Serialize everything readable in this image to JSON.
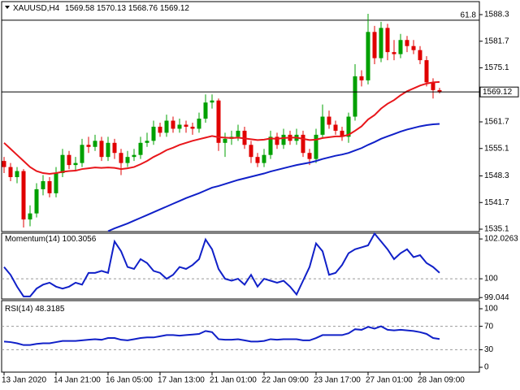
{
  "chart_data": [
    {
      "type": "candlestick",
      "title": "XAUUSD,H4",
      "categories": [
        "13 Jan 2020",
        null,
        null,
        null,
        null,
        null,
        null,
        null,
        "14 Jan 21:00",
        null,
        null,
        null,
        null,
        null,
        null,
        null,
        "16 Jan 05:00",
        null,
        null,
        null,
        null,
        null,
        null,
        null,
        "17 Jan 13:00",
        null,
        null,
        null,
        null,
        null,
        null,
        null,
        "21 Jan 01:00",
        null,
        null,
        null,
        null,
        null,
        null,
        null,
        "22 Jan 09:00",
        null,
        null,
        null,
        null,
        null,
        null,
        null,
        "23 Jan 17:00",
        null,
        null,
        null,
        null,
        null,
        null,
        null,
        "27 Jan 01:00",
        null,
        null,
        null,
        null,
        null,
        null,
        null,
        "28 Jan 09:00",
        null,
        null,
        null
      ],
      "opens": [
        1552.0,
        1550.5,
        1548.0,
        1549.5,
        1537.5,
        1539.0,
        1545.0,
        1547.0,
        1544.0,
        1549.0,
        1553.5,
        1551.0,
        1551.5,
        1556.0,
        1555.5,
        1557.0,
        1553.0,
        1556.5,
        1554.0,
        1551.5,
        1553.0,
        1553.5,
        1556.5,
        1557.0,
        1560.5,
        1559.0,
        1562.0,
        1560.0,
        1561.0,
        1560.5,
        1560.0,
        1562.5,
        1566.5,
        1567.0,
        1556.5,
        1557.5,
        1558.0,
        1559.5,
        1556.0,
        1553.0,
        1551.5,
        1553.5,
        1558.0,
        1556.0,
        1558.5,
        1557.0,
        1558.5,
        1554.0,
        1552.5,
        1558.5,
        1563.0,
        1561.0,
        1559.5,
        1558.0,
        1563.0,
        1573.0,
        1572.0,
        1584.0,
        1577.5,
        1585.0,
        1579.0,
        1578.5,
        1582.0,
        1580.5,
        1579.5,
        1577.0,
        1571.5,
        1569.58
      ],
      "highs": [
        1553.0,
        1551.5,
        1550.5,
        1550.0,
        1541.0,
        1546.5,
        1548.5,
        1548.0,
        1550.5,
        1555.0,
        1554.5,
        1553.0,
        1557.5,
        1558.0,
        1558.5,
        1558.0,
        1558.0,
        1557.5,
        1555.0,
        1554.5,
        1555.0,
        1558.0,
        1559.0,
        1562.0,
        1561.5,
        1563.5,
        1563.0,
        1562.5,
        1562.0,
        1561.5,
        1564.0,
        1568.5,
        1568.5,
        1567.5,
        1559.0,
        1559.5,
        1561.0,
        1560.5,
        1557.0,
        1554.0,
        1555.0,
        1559.5,
        1559.0,
        1560.0,
        1559.5,
        1560.0,
        1559.5,
        1555.0,
        1560.0,
        1566.0,
        1564.5,
        1562.0,
        1560.5,
        1564.0,
        1576.0,
        1574.5,
        1588.5,
        1585.5,
        1586.5,
        1586.0,
        1582.0,
        1583.5,
        1583.0,
        1582.0,
        1580.5,
        1578.0,
        1572.5,
        1570.13
      ],
      "lows": [
        1549.0,
        1547.0,
        1546.5,
        1535.5,
        1535.8,
        1538.0,
        1543.5,
        1543.0,
        1543.0,
        1548.0,
        1550.0,
        1549.5,
        1550.5,
        1554.0,
        1554.5,
        1552.0,
        1552.0,
        1552.5,
        1548.5,
        1550.5,
        1552.0,
        1552.5,
        1555.5,
        1556.0,
        1558.0,
        1558.0,
        1559.0,
        1559.0,
        1559.0,
        1558.5,
        1559.0,
        1561.5,
        1565.0,
        1554.5,
        1553.0,
        1556.0,
        1557.0,
        1555.0,
        1551.5,
        1550.5,
        1550.5,
        1552.5,
        1555.0,
        1555.0,
        1556.0,
        1556.0,
        1553.0,
        1551.0,
        1551.5,
        1557.5,
        1560.0,
        1558.5,
        1557.0,
        1556.5,
        1562.0,
        1570.5,
        1571.0,
        1576.0,
        1576.5,
        1577.0,
        1577.0,
        1577.5,
        1579.0,
        1578.5,
        1576.0,
        1570.5,
        1567.5,
        1568.76
      ],
      "closes": [
        1550.5,
        1548.0,
        1549.5,
        1537.5,
        1539.0,
        1545.0,
        1547.0,
        1544.0,
        1549.0,
        1553.5,
        1551.0,
        1551.5,
        1556.0,
        1555.5,
        1557.0,
        1553.0,
        1556.5,
        1554.0,
        1551.5,
        1553.0,
        1553.5,
        1556.5,
        1557.0,
        1560.5,
        1559.0,
        1562.0,
        1560.0,
        1561.0,
        1560.5,
        1560.0,
        1562.5,
        1566.5,
        1567.0,
        1556.5,
        1557.5,
        1558.0,
        1559.5,
        1556.0,
        1553.0,
        1551.5,
        1553.5,
        1558.0,
        1556.0,
        1558.5,
        1557.0,
        1558.5,
        1554.0,
        1552.5,
        1558.5,
        1563.0,
        1561.0,
        1559.5,
        1558.0,
        1563.0,
        1573.0,
        1572.0,
        1584.0,
        1577.5,
        1585.0,
        1579.0,
        1578.5,
        1582.0,
        1580.5,
        1579.5,
        1577.0,
        1571.5,
        1569.58,
        1569.12
      ],
      "up_color": "#00a000",
      "down_color": "#e00000",
      "series": [
        {
          "color": "#e8161b",
          "values": [
            1556.5,
            1555.0,
            1553.5,
            1552.0,
            1550.5,
            1549.5,
            1549.0,
            1548.8,
            1549.0,
            1549.3,
            1549.5,
            1549.6,
            1550.0,
            1550.2,
            1550.4,
            1550.3,
            1550.4,
            1550.3,
            1550.0,
            1550.2,
            1550.5,
            1551.2,
            1552.0,
            1553.0,
            1553.8,
            1554.7,
            1555.3,
            1556.0,
            1556.5,
            1557.0,
            1557.4,
            1557.8,
            1558.2,
            1557.9,
            1557.8,
            1557.7,
            1557.8,
            1557.6,
            1557.4,
            1557.2,
            1557.3,
            1557.6,
            1557.5,
            1557.7,
            1557.8,
            1557.8,
            1557.5,
            1557.2,
            1557.3,
            1557.7,
            1557.9,
            1558.1,
            1558.1,
            1558.5,
            1559.5,
            1560.6,
            1562.3,
            1563.4,
            1565.0,
            1566.2,
            1567.1,
            1568.3,
            1569.3,
            1570.0,
            1570.7,
            1571.2,
            1571.5,
            1571.6
          ]
        },
        {
          "color": "#1020c8",
          "values": [
            null,
            null,
            null,
            null,
            null,
            null,
            null,
            null,
            null,
            null,
            null,
            null,
            null,
            null,
            null,
            null,
            1534.6,
            1535.3,
            1535.9,
            1536.5,
            1537.2,
            1537.9,
            1538.6,
            1539.3,
            1540.0,
            1540.7,
            1541.4,
            1542.1,
            1542.8,
            1543.4,
            1544.0,
            1544.7,
            1545.4,
            1545.8,
            1546.3,
            1546.8,
            1547.3,
            1547.7,
            1548.1,
            1548.5,
            1548.9,
            1549.4,
            1549.8,
            1550.2,
            1550.6,
            1551.0,
            1551.3,
            1551.6,
            1552.0,
            1552.5,
            1552.9,
            1553.3,
            1553.6,
            1554.0,
            1554.6,
            1555.2,
            1556.0,
            1556.7,
            1557.5,
            1558.1,
            1558.7,
            1559.3,
            1559.8,
            1560.2,
            1560.6,
            1560.9,
            1561.1,
            1561.2
          ]
        }
      ],
      "levels": [
        {
          "value": 1586.9,
          "label": "61.8"
        }
      ],
      "ylim": [
        1534.5,
        1591.52
      ],
      "yticks": [
        1588.3,
        1581.7,
        1575.1,
        1561.7,
        1555.1,
        1548.3,
        1541.7,
        1535.1
      ]
    },
    {
      "type": "line",
      "title": "Momentum(14)",
      "color": "#1020c8",
      "values": [
        100.6,
        100.2,
        99.6,
        99.1,
        99.1,
        99.5,
        99.7,
        99.8,
        99.6,
        99.5,
        99.6,
        99.8,
        99.7,
        100.3,
        100.3,
        100.4,
        100.3,
        101.9,
        101.4,
        100.6,
        100.5,
        101.0,
        100.8,
        100.4,
        100.3,
        100.0,
        100.2,
        100.6,
        100.5,
        100.7,
        101.0,
        102.0,
        101.5,
        100.5,
        100.0,
        99.9,
        100.0,
        99.7,
        100.2,
        99.6,
        100.0,
        99.9,
        99.8,
        99.9,
        99.6,
        99.2,
        99.9,
        100.6,
        101.8,
        101.4,
        100.2,
        100.3,
        100.7,
        101.3,
        101.5,
        101.6,
        101.7,
        102.3,
        101.9,
        101.5,
        101.0,
        101.3,
        101.5,
        101.1,
        101.2,
        100.8,
        100.6,
        100.3056
      ],
      "levels": [
        100
      ],
      "ylim": [
        98.97,
        102.32
      ],
      "yticks": [
        102.0263,
        100,
        99.044
      ]
    },
    {
      "type": "line",
      "title": "RSI(14)",
      "color": "#1020c8",
      "values": [
        44,
        43,
        41,
        38,
        38,
        40,
        41,
        41,
        43,
        45,
        45,
        45,
        46,
        47,
        48,
        47,
        50,
        50,
        47,
        46,
        48,
        50,
        51,
        51,
        53,
        55,
        55,
        54,
        55,
        56,
        57,
        62,
        60,
        48,
        47,
        47,
        48,
        46,
        44,
        44,
        45,
        48,
        47,
        48,
        48,
        48,
        46,
        46,
        50,
        55,
        55,
        55,
        55,
        58,
        65,
        64,
        69,
        66,
        70,
        64,
        63,
        64,
        63,
        62,
        60,
        57,
        50,
        48.3185
      ],
      "levels": [
        70,
        30
      ],
      "ylim": [
        -8.3,
        113.9
      ],
      "yticks": [
        100,
        70,
        30,
        0
      ]
    }
  ]
}
